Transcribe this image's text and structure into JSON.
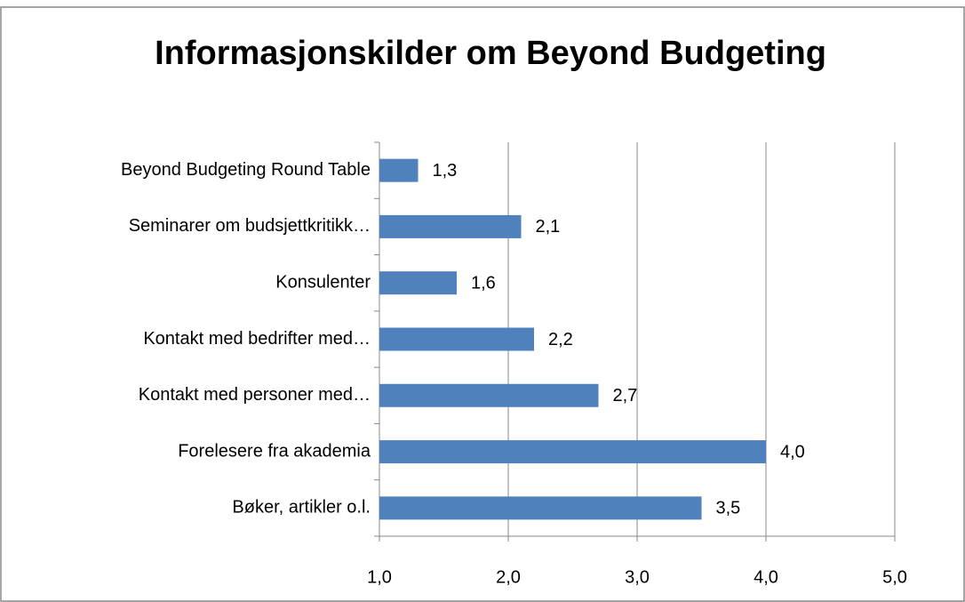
{
  "chart_data": {
    "type": "bar",
    "orientation": "horizontal",
    "title": "Informasjonskilder om Beyond Budgeting",
    "categories": [
      "Beyond Budgeting Round Table",
      "Seminarer om budsjettkritikk…",
      "Konsulenter",
      "Kontakt med bedrifter med…",
      "Kontakt med personer med…",
      "Forelesere fra akademia",
      "Bøker, artikler o.l."
    ],
    "values": [
      1.3,
      2.1,
      1.6,
      2.2,
      2.7,
      4.0,
      3.5
    ],
    "value_labels": [
      "1,3",
      "2,1",
      "1,6",
      "2,2",
      "2,7",
      "4,0",
      "3,5"
    ],
    "color": "#4f81bd",
    "xlim": [
      1,
      5
    ],
    "xticks": [
      {
        "value": 1,
        "label": "1,0"
      },
      {
        "value": 2,
        "label": "2,0"
      },
      {
        "value": 3,
        "label": "3,0"
      },
      {
        "value": 4,
        "label": "4,0"
      },
      {
        "value": 5,
        "label": "5,0"
      }
    ],
    "grid": true
  }
}
